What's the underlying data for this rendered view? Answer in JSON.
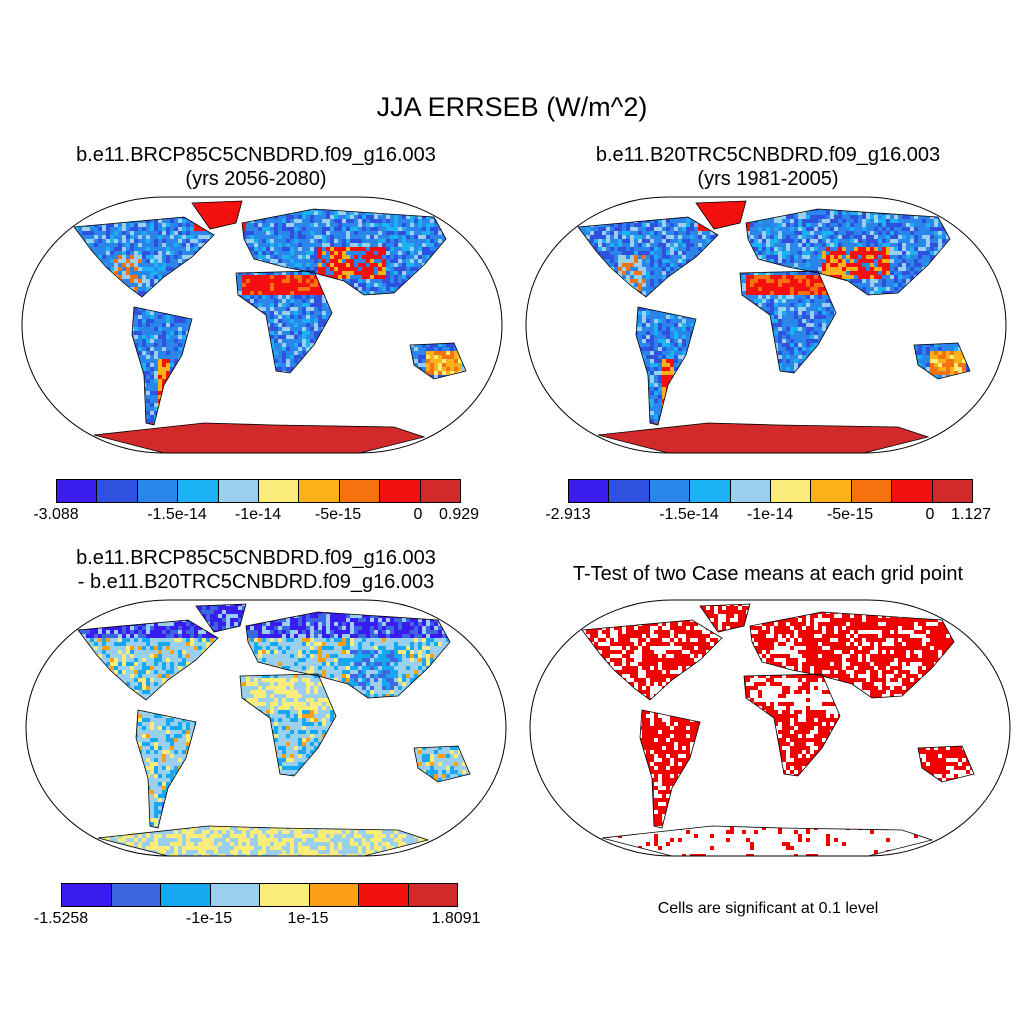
{
  "title": "JJA ERRSEB (W/m^2)",
  "panels": [
    {
      "title_line1": "b.e11.BRCP85C5CNBDRD.f09_g16.003",
      "title_line2": "(yrs 2056-2080)"
    },
    {
      "title_line1": "b.e11.B20TRC5CNBDRD.f09_g16.003",
      "title_line2": "(yrs 1981-2005)"
    },
    {
      "title_line1": "b.e11.BRCP85C5CNBDRD.f09_g16.003",
      "title_line2": "- b.e11.B20TRC5CNBDRD.f09_g16.003"
    },
    {
      "title_line1": "T-Test of two Case means at each grid point",
      "title_line2": ""
    }
  ],
  "colorbars": [
    {
      "colors": [
        "#3b1cf0",
        "#3050e0",
        "#2a86ea",
        "#1ab2f2",
        "#9ad0ee",
        "#fcec7a",
        "#fbb21a",
        "#f5720e",
        "#f51010",
        "#d22a2a"
      ],
      "ticks": [
        "-3.088",
        "-1.5e-14",
        "-1e-14",
        "-5e-15",
        "0",
        "0.929"
      ]
    },
    {
      "colors": [
        "#3b1cf0",
        "#3050e0",
        "#2a86ea",
        "#1ab2f2",
        "#9ad0ee",
        "#fcec7a",
        "#fbb21a",
        "#f5720e",
        "#f51010",
        "#d22a2a"
      ],
      "ticks": [
        "-2.913",
        "-1.5e-14",
        "-1e-14",
        "-5e-15",
        "0",
        "1.127"
      ]
    },
    {
      "colors": [
        "#3b1cf0",
        "#3b68e0",
        "#16a8f0",
        "#9ad0ee",
        "#fcec7a",
        "#fba014",
        "#f51010",
        "#d22a2a"
      ],
      "ticks": [
        "-1.5258",
        "-1e-15",
        "1e-15",
        "1.8091"
      ]
    }
  ],
  "significance_note": "Cells are significant at 0.1 level"
}
